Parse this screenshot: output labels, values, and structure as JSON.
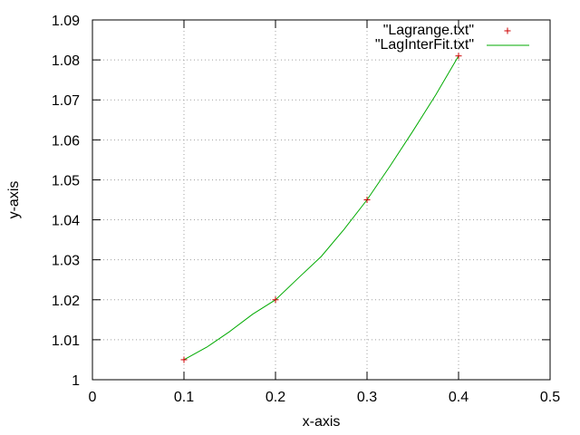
{
  "chart_data": {
    "type": "line",
    "xlabel": "x-axis",
    "ylabel": "y-axis",
    "xlim": [
      0,
      0.5
    ],
    "ylim": [
      1,
      1.09
    ],
    "x_ticks": [
      {
        "value": 0,
        "label": "0"
      },
      {
        "value": 0.1,
        "label": "0.1"
      },
      {
        "value": 0.2,
        "label": "0.2"
      },
      {
        "value": 0.3,
        "label": "0.3"
      },
      {
        "value": 0.4,
        "label": "0.4"
      },
      {
        "value": 0.5,
        "label": "0.5"
      }
    ],
    "y_ticks": [
      {
        "value": 1,
        "label": "1"
      },
      {
        "value": 1.01,
        "label": "1.01"
      },
      {
        "value": 1.02,
        "label": "1.02"
      },
      {
        "value": 1.03,
        "label": "1.03"
      },
      {
        "value": 1.04,
        "label": "1.04"
      },
      {
        "value": 1.05,
        "label": "1.05"
      },
      {
        "value": 1.06,
        "label": "1.06"
      },
      {
        "value": 1.07,
        "label": "1.07"
      },
      {
        "value": 1.08,
        "label": "1.08"
      },
      {
        "value": 1.09,
        "label": "1.09"
      }
    ],
    "grid": true,
    "grid_style": "dotted",
    "legend_position": "top-right",
    "series": [
      {
        "name": "\"Lagrange.txt\"",
        "style": "points",
        "marker": "plus",
        "color": "#cc0000",
        "x": [
          0.1,
          0.2,
          0.3,
          0.4
        ],
        "y": [
          1.005,
          1.02,
          1.045,
          1.081
        ]
      },
      {
        "name": "\"LagInterFit.txt\"",
        "style": "line",
        "color": "#00aa00",
        "x": [
          0.1,
          0.125,
          0.15,
          0.175,
          0.2,
          0.225,
          0.25,
          0.275,
          0.3,
          0.325,
          0.35,
          0.375,
          0.4
        ],
        "y": [
          1.005,
          1.00816,
          1.01205,
          1.01639,
          1.02,
          1.02546,
          1.03082,
          1.03766,
          1.045,
          1.05342,
          1.06215,
          1.07124,
          1.081
        ]
      }
    ]
  }
}
